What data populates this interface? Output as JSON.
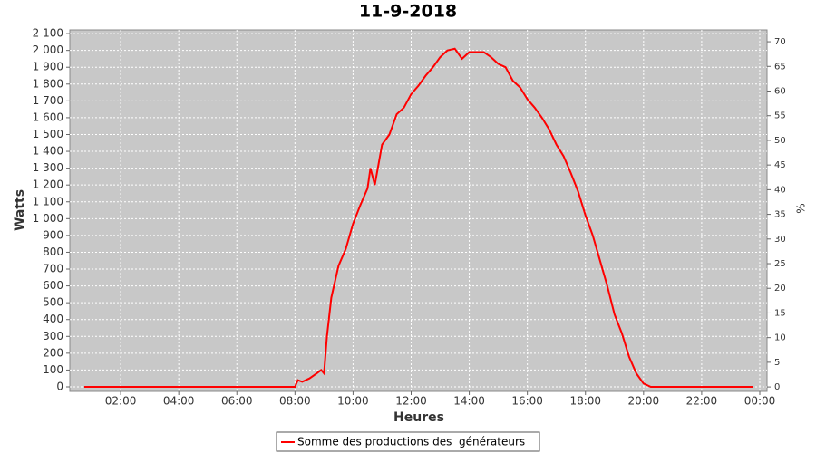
{
  "chart_data": {
    "type": "line",
    "title": "11-9-2018",
    "xlabel": "Heures",
    "ylabel": "Watts",
    "y2label": "%",
    "xlim": [
      0.25,
      24.25
    ],
    "xticks": [
      {
        "value": 2,
        "label": "02:00"
      },
      {
        "value": 4,
        "label": "04:00"
      },
      {
        "value": 6,
        "label": "06:00"
      },
      {
        "value": 8,
        "label": "08:00"
      },
      {
        "value": 10,
        "label": "10:00"
      },
      {
        "value": 12,
        "label": "12:00"
      },
      {
        "value": 14,
        "label": "14:00"
      },
      {
        "value": 16,
        "label": "16:00"
      },
      {
        "value": 18,
        "label": "18:00"
      },
      {
        "value": 20,
        "label": "20:00"
      },
      {
        "value": 22,
        "label": "22:00"
      },
      {
        "value": 24,
        "label": "00:00"
      }
    ],
    "ylim": [
      -27,
      2122
    ],
    "yticks": [
      0,
      100,
      200,
      300,
      400,
      500,
      600,
      700,
      800,
      900,
      {
        "value": 1000,
        "label": "1 000"
      },
      {
        "value": 1100,
        "label": "1 100"
      },
      {
        "value": 1200,
        "label": "1 200"
      },
      {
        "value": 1300,
        "label": "1 300"
      },
      {
        "value": 1400,
        "label": "1 400"
      },
      {
        "value": 1500,
        "label": "1 500"
      },
      {
        "value": 1600,
        "label": "1 600"
      },
      {
        "value": 1700,
        "label": "1 700"
      },
      {
        "value": 1800,
        "label": "1 800"
      },
      {
        "value": 1900,
        "label": "1 900"
      },
      {
        "value": 2000,
        "label": "2 000"
      },
      {
        "value": 2100,
        "label": "2 100"
      }
    ],
    "y2lim": [
      -0.9,
      72.4
    ],
    "y2ticks": [
      0,
      5,
      10,
      15,
      20,
      25,
      30,
      35,
      40,
      45,
      50,
      55,
      60,
      65,
      70
    ],
    "grid": true,
    "legend": "bottom",
    "x": [
      0.75,
      1,
      1.25,
      1.5,
      1.75,
      2,
      2.25,
      2.5,
      2.75,
      3,
      3.25,
      3.5,
      3.75,
      4,
      4.25,
      4.5,
      4.75,
      5,
      5.25,
      5.5,
      5.75,
      6,
      6.25,
      6.5,
      6.75,
      7,
      7.25,
      7.5,
      7.75,
      8,
      8.1,
      8.25,
      8.5,
      8.75,
      8.9,
      9,
      9.1,
      9.25,
      9.5,
      9.75,
      10,
      10.25,
      10.5,
      10.6,
      10.75,
      11,
      11.25,
      11.5,
      11.75,
      12,
      12.25,
      12.5,
      12.75,
      13,
      13.25,
      13.5,
      13.75,
      14,
      14.25,
      14.5,
      14.75,
      15,
      15.25,
      15.5,
      15.75,
      16,
      16.25,
      16.5,
      16.75,
      17,
      17.25,
      17.5,
      17.75,
      18,
      18.25,
      18.5,
      18.75,
      19,
      19.25,
      19.5,
      19.75,
      20,
      20.25,
      20.5,
      20.75,
      21,
      21.25,
      21.5,
      21.75,
      22,
      22.25,
      22.5,
      22.75,
      23,
      23.25,
      23.5,
      23.75
    ],
    "series": [
      {
        "name": "Somme des productions des  générateurs",
        "color": "#ff0000",
        "values": [
          0,
          0,
          0,
          0,
          0,
          0,
          0,
          0,
          0,
          0,
          0,
          0,
          0,
          0,
          0,
          0,
          0,
          0,
          0,
          0,
          0,
          0,
          0,
          0,
          0,
          0,
          0,
          0,
          0,
          0,
          40,
          30,
          50,
          80,
          100,
          80,
          300,
          530,
          720,
          820,
          970,
          1080,
          1180,
          1300,
          1200,
          1440,
          1500,
          1620,
          1660,
          1740,
          1790,
          1850,
          1900,
          1960,
          2000,
          2010,
          1950,
          1990,
          1990,
          1990,
          1960,
          1920,
          1900,
          1820,
          1780,
          1710,
          1660,
          1600,
          1530,
          1440,
          1370,
          1270,
          1160,
          1020,
          900,
          750,
          600,
          430,
          320,
          180,
          80,
          20,
          0,
          0,
          0,
          0,
          0,
          0,
          0,
          0,
          0,
          0,
          0,
          0,
          0,
          0,
          0
        ]
      }
    ]
  }
}
